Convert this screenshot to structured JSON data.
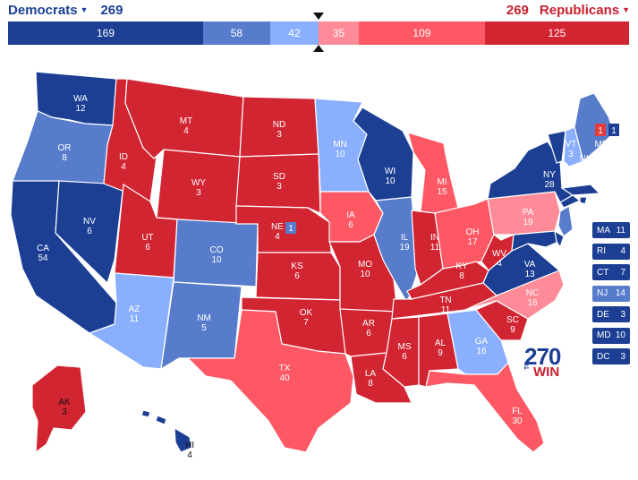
{
  "header": {
    "dem_label": "Democrats",
    "dem_total": "269",
    "rep_total": "269",
    "rep_label": "Republicans"
  },
  "bar": [
    {
      "value": "169",
      "color": "#1c3f94",
      "share": 169
    },
    {
      "value": "58",
      "color": "#577ccc",
      "share": 58
    },
    {
      "value": "42",
      "color": "#8aafff",
      "share": 42
    },
    {
      "value": "35",
      "color": "#ff8b98",
      "share": 35
    },
    {
      "value": "109",
      "color": "#ff5865",
      "share": 109
    },
    {
      "value": "125",
      "color": "#d22532",
      "share": 125
    }
  ],
  "colors": {
    "safe_dem": "#1c3f94",
    "likely_dem": "#577ccc",
    "lean_dem": "#8aafff",
    "tilt_rep": "#ff8b98",
    "likely_rep": "#ff5865",
    "safe_rep": "#d22532"
  },
  "states": [
    {
      "abbr": "WA",
      "ev": "12",
      "rating": "safe_dem"
    },
    {
      "abbr": "OR",
      "ev": "8",
      "rating": "likely_dem"
    },
    {
      "abbr": "CA",
      "ev": "54",
      "rating": "safe_dem"
    },
    {
      "abbr": "NV",
      "ev": "6",
      "rating": "safe_dem"
    },
    {
      "abbr": "ID",
      "ev": "4",
      "rating": "safe_rep"
    },
    {
      "abbr": "MT",
      "ev": "4",
      "rating": "safe_rep"
    },
    {
      "abbr": "WY",
      "ev": "3",
      "rating": "safe_rep"
    },
    {
      "abbr": "UT",
      "ev": "6",
      "rating": "safe_rep"
    },
    {
      "abbr": "AZ",
      "ev": "11",
      "rating": "lean_dem"
    },
    {
      "abbr": "CO",
      "ev": "10",
      "rating": "likely_dem"
    },
    {
      "abbr": "NM",
      "ev": "5",
      "rating": "likely_dem"
    },
    {
      "abbr": "ND",
      "ev": "3",
      "rating": "safe_rep"
    },
    {
      "abbr": "SD",
      "ev": "3",
      "rating": "safe_rep"
    },
    {
      "abbr": "NE",
      "ev": "4",
      "rating": "safe_rep"
    },
    {
      "abbr": "KS",
      "ev": "6",
      "rating": "safe_rep"
    },
    {
      "abbr": "OK",
      "ev": "7",
      "rating": "safe_rep"
    },
    {
      "abbr": "TX",
      "ev": "40",
      "rating": "likely_rep"
    },
    {
      "abbr": "MN",
      "ev": "10",
      "rating": "lean_dem"
    },
    {
      "abbr": "IA",
      "ev": "6",
      "rating": "likely_rep"
    },
    {
      "abbr": "MO",
      "ev": "10",
      "rating": "safe_rep"
    },
    {
      "abbr": "AR",
      "ev": "6",
      "rating": "safe_rep"
    },
    {
      "abbr": "LA",
      "ev": "8",
      "rating": "safe_rep"
    },
    {
      "abbr": "WI",
      "ev": "10",
      "rating": "safe_dem"
    },
    {
      "abbr": "IL",
      "ev": "19",
      "rating": "likely_dem"
    },
    {
      "abbr": "MI",
      "ev": "15",
      "rating": "likely_rep"
    },
    {
      "abbr": "IN",
      "ev": "11",
      "rating": "safe_rep"
    },
    {
      "abbr": "OH",
      "ev": "17",
      "rating": "likely_rep"
    },
    {
      "abbr": "KY",
      "ev": "8",
      "rating": "safe_rep"
    },
    {
      "abbr": "TN",
      "ev": "11",
      "rating": "safe_rep"
    },
    {
      "abbr": "MS",
      "ev": "6",
      "rating": "safe_rep"
    },
    {
      "abbr": "AL",
      "ev": "9",
      "rating": "safe_rep"
    },
    {
      "abbr": "GA",
      "ev": "16",
      "rating": "lean_dem"
    },
    {
      "abbr": "FL",
      "ev": "30",
      "rating": "likely_rep"
    },
    {
      "abbr": "SC",
      "ev": "9",
      "rating": "safe_rep"
    },
    {
      "abbr": "NC",
      "ev": "16",
      "rating": "tilt_rep"
    },
    {
      "abbr": "VA",
      "ev": "13",
      "rating": "safe_dem"
    },
    {
      "abbr": "WV",
      "ev": "4",
      "rating": "safe_rep"
    },
    {
      "abbr": "PA",
      "ev": "19",
      "rating": "tilt_rep"
    },
    {
      "abbr": "NY",
      "ev": "28",
      "rating": "safe_dem"
    },
    {
      "abbr": "VT",
      "ev": "3",
      "rating": "safe_dem"
    },
    {
      "abbr": "NH",
      "ev": "4",
      "rating": "lean_dem"
    },
    {
      "abbr": "ME",
      "ev": "2",
      "rating": "likely_dem"
    },
    {
      "abbr": "AK",
      "ev": "3",
      "rating": "safe_rep"
    },
    {
      "abbr": "HI",
      "ev": "4",
      "rating": "safe_dem"
    }
  ],
  "districts": {
    "ne_cd2": "1",
    "me_cd1": "1",
    "me_cd2": "1"
  },
  "small_states": [
    {
      "abbr": "MA",
      "ev": "11",
      "rating": "safe_dem"
    },
    {
      "abbr": "RI",
      "ev": "4",
      "rating": "safe_dem"
    },
    {
      "abbr": "CT",
      "ev": "7",
      "rating": "safe_dem"
    },
    {
      "abbr": "NJ",
      "ev": "14",
      "rating": "likely_dem"
    },
    {
      "abbr": "DE",
      "ev": "3",
      "rating": "safe_dem"
    },
    {
      "abbr": "MD",
      "ev": "10",
      "rating": "safe_dem"
    },
    {
      "abbr": "DC",
      "ev": "3",
      "rating": "safe_dem"
    }
  ],
  "logo": {
    "number": "270",
    "to": "TO",
    "win": "WIN"
  }
}
